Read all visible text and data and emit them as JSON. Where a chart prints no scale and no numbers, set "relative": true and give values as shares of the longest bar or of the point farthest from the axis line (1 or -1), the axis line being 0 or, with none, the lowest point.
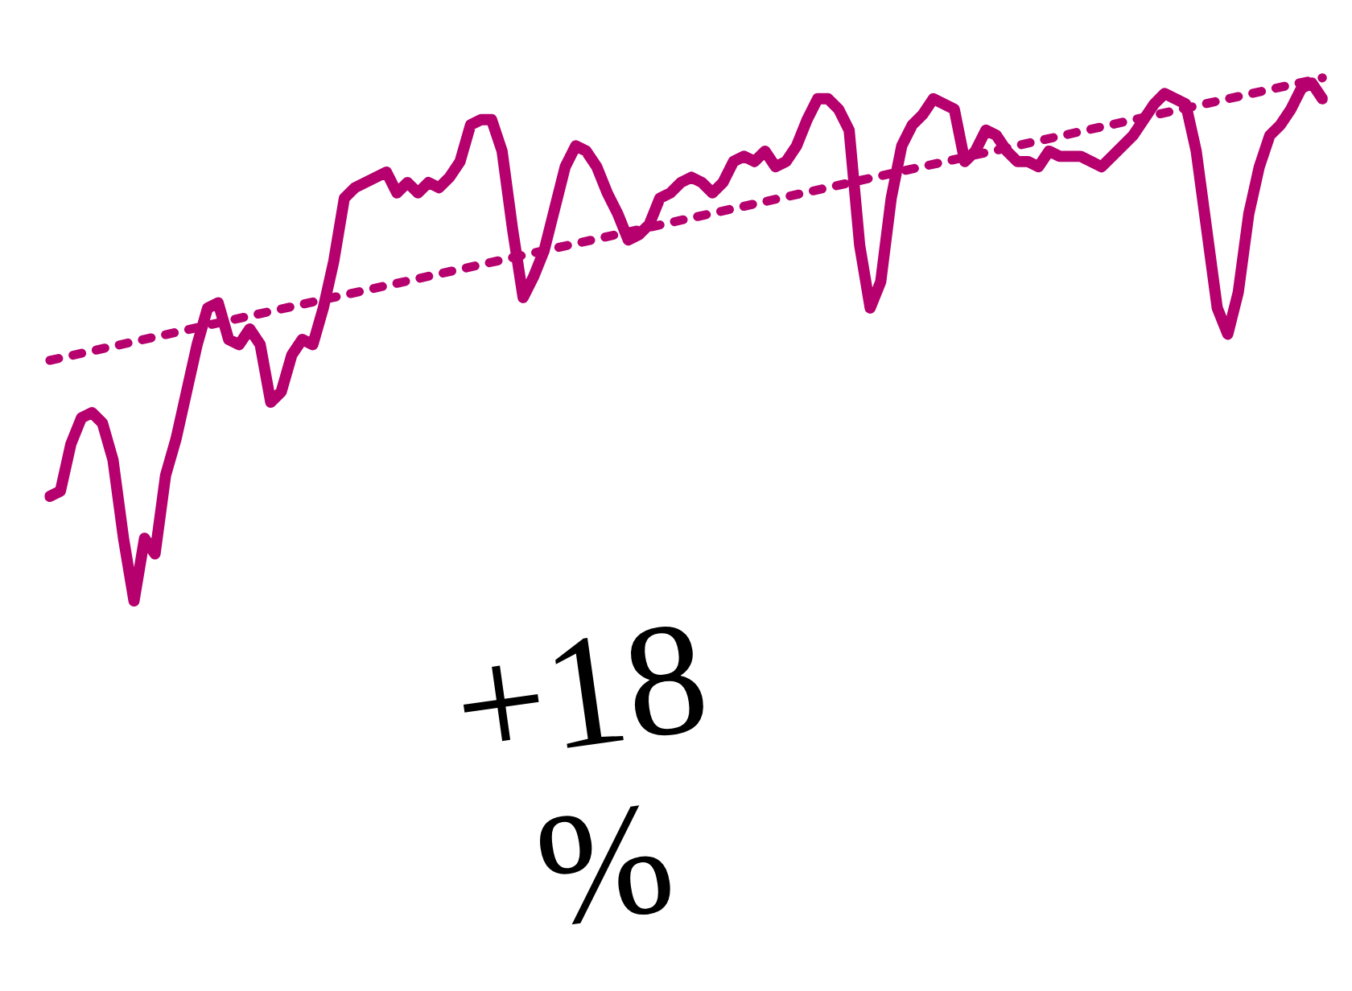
{
  "chart_data": {
    "type": "line",
    "relative": true,
    "categories": [
      null,
      null,
      null,
      null,
      null,
      null,
      null,
      null,
      null,
      null,
      null,
      null,
      null,
      null,
      null,
      null,
      null,
      null,
      null,
      null,
      null,
      null,
      null,
      null,
      null,
      null,
      null,
      null,
      null,
      null,
      null,
      null,
      null,
      null,
      null,
      null,
      null,
      null,
      null,
      null,
      null,
      null,
      null,
      null,
      null,
      null,
      null,
      null,
      null,
      null,
      null,
      null,
      null,
      null,
      null,
      null,
      null,
      null,
      null,
      null,
      null,
      null,
      null,
      null,
      null,
      null,
      null,
      null,
      null,
      null,
      null,
      null,
      null,
      null,
      null,
      null,
      null,
      null,
      null,
      null,
      null,
      null,
      null,
      null,
      null,
      null,
      null,
      null,
      null,
      null,
      null,
      null,
      null,
      null,
      null,
      null,
      null,
      null,
      null,
      null,
      null,
      null,
      null,
      null,
      null,
      null,
      null,
      null,
      null,
      null,
      null,
      null,
      null,
      null,
      null,
      null,
      null,
      null,
      null,
      null,
      null,
      null
    ],
    "series": [
      {
        "color": "#b5006e",
        "line_style": "solid",
        "values": [
          0.2,
          0.21,
          0.3,
          0.35,
          0.36,
          0.34,
          0.27,
          0.12,
          0.0,
          0.12,
          0.09,
          0.24,
          0.31,
          0.4,
          0.49,
          0.56,
          0.57,
          0.5,
          0.49,
          0.52,
          0.49,
          0.38,
          0.4,
          0.47,
          0.5,
          0.49,
          0.56,
          0.65,
          0.77,
          0.79,
          0.8,
          0.81,
          0.82,
          0.78,
          0.8,
          0.78,
          0.8,
          0.79,
          0.81,
          0.84,
          0.91,
          0.92,
          0.92,
          0.86,
          0.71,
          0.58,
          0.62,
          0.67,
          0.75,
          0.83,
          0.87,
          0.86,
          0.83,
          0.78,
          0.74,
          0.69,
          0.7,
          0.72,
          0.77,
          0.78,
          0.8,
          0.81,
          0.8,
          0.78,
          0.8,
          0.84,
          0.85,
          0.84,
          0.86,
          0.83,
          0.84,
          0.87,
          0.92,
          0.96,
          0.96,
          0.94,
          0.9,
          0.68,
          0.56,
          0.61,
          0.77,
          0.87,
          0.91,
          0.93,
          0.96,
          0.95,
          0.94,
          0.84,
          0.86,
          0.9,
          0.89,
          0.86,
          0.84,
          0.84,
          0.83,
          0.86,
          0.85,
          0.85,
          0.85,
          0.84,
          0.83,
          0.85,
          0.87,
          0.89,
          0.92,
          0.95,
          0.97,
          0.96,
          0.95,
          0.86,
          0.71,
          0.56,
          0.51,
          0.59,
          0.74,
          0.83,
          0.89,
          0.91,
          0.94,
          0.98,
          0.99,
          0.96
        ]
      },
      {
        "color": "#b5006e",
        "line_style": "dotted",
        "values": [
          0.46,
          null,
          null,
          null,
          null,
          null,
          null,
          null,
          null,
          null,
          null,
          null,
          null,
          null,
          null,
          null,
          null,
          null,
          null,
          null,
          null,
          null,
          null,
          null,
          null,
          null,
          null,
          null,
          null,
          null,
          null,
          null,
          null,
          null,
          null,
          null,
          null,
          null,
          null,
          null,
          null,
          null,
          null,
          null,
          null,
          null,
          null,
          null,
          null,
          null,
          null,
          null,
          null,
          null,
          null,
          null,
          null,
          null,
          null,
          null,
          null,
          null,
          null,
          null,
          null,
          null,
          null,
          null,
          null,
          null,
          null,
          null,
          null,
          null,
          null,
          null,
          null,
          null,
          null,
          null,
          null,
          null,
          null,
          null,
          null,
          null,
          null,
          null,
          null,
          null,
          null,
          null,
          null,
          null,
          null,
          null,
          null,
          null,
          null,
          null,
          null,
          null,
          null,
          null,
          null,
          null,
          null,
          null,
          null,
          null,
          null,
          null,
          null,
          null,
          null,
          null,
          null,
          null,
          null,
          null,
          null,
          1.0
        ]
      }
    ],
    "annotations": [
      "+18\n%"
    ],
    "marker": "none",
    "legend": false
  }
}
